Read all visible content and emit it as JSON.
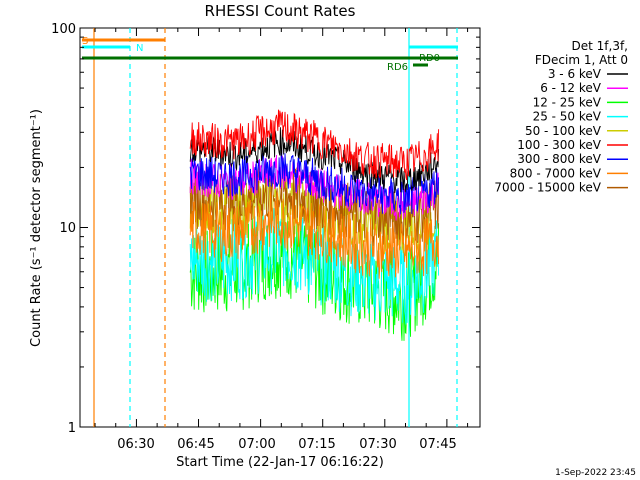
{
  "chart_data": {
    "type": "line",
    "title": "RHESSI Count Rates",
    "xlabel": "Start Time (22-Jan-17 06:16:22)",
    "ylabel": "Count Rate (s⁻¹ detector segment⁻¹)",
    "yscale": "log",
    "ylim": [
      1,
      100
    ],
    "xlim": [
      "06:16:22",
      "07:53:00"
    ],
    "x_ticks": [
      "06:30",
      "06:45",
      "07:00",
      "07:15",
      "07:30",
      "07:45"
    ],
    "y_ticks": [
      "1",
      "10",
      "100"
    ],
    "data_range": [
      "06:43:00",
      "07:43:00"
    ],
    "legend": {
      "placement": "right",
      "header": [
        "Det 1f,3f,",
        "FDecim 1, Att 0"
      ],
      "entries": [
        {
          "label": "3 - 6 keV",
          "color": "#000000"
        },
        {
          "label": "6 - 12 keV",
          "color": "#ff00ff"
        },
        {
          "label": "12 - 25 keV",
          "color": "#00ff00"
        },
        {
          "label": "25 - 50 keV",
          "color": "#00ffff"
        },
        {
          "label": "50 - 100 keV",
          "color": "#cccc00"
        },
        {
          "label": "100 - 300 keV",
          "color": "#ff0000"
        },
        {
          "label": "300 - 800 keV",
          "color": "#0000ff"
        },
        {
          "label": "800 - 7000 keV",
          "color": "#ff7f00"
        },
        {
          "label": "7000 - 15000 keV",
          "color": "#b05a00"
        }
      ]
    },
    "series": [
      {
        "name": "3 - 6 keV",
        "color": "#000000",
        "t": [
          "06:43",
          "06:50",
          "06:55",
          "07:00",
          "07:05",
          "07:15",
          "07:25",
          "07:35",
          "07:40",
          "07:43"
        ],
        "values": [
          25,
          24,
          23,
          25,
          27,
          23,
          19,
          17,
          19,
          22
        ]
      },
      {
        "name": "6 - 12 keV",
        "color": "#ff00ff",
        "t": [
          "06:43",
          "06:50",
          "06:55",
          "07:00",
          "07:05",
          "07:15",
          "07:25",
          "07:35",
          "07:40",
          "07:43"
        ],
        "values": [
          18,
          17,
          17,
          18,
          19,
          16,
          14,
          13,
          14,
          16
        ]
      },
      {
        "name": "12 - 25 keV",
        "color": "#00ff00",
        "t": [
          "06:43",
          "06:50",
          "06:55",
          "07:00",
          "07:05",
          "07:15",
          "07:25",
          "07:35",
          "07:40",
          "07:43"
        ],
        "values": [
          6.0,
          6.0,
          6.2,
          7.0,
          7.5,
          6.0,
          5.0,
          4.5,
          5.5,
          7.0
        ]
      },
      {
        "name": "25 - 50 keV",
        "color": "#00ffff",
        "t": [
          "06:43",
          "06:50",
          "06:55",
          "07:00",
          "07:05",
          "07:15",
          "07:25",
          "07:35",
          "07:40",
          "07:43"
        ],
        "values": [
          7.0,
          6.8,
          7.0,
          7.5,
          8.0,
          6.5,
          5.5,
          5.2,
          6.0,
          7.5
        ]
      },
      {
        "name": "50 - 100 keV",
        "color": "#cccc00",
        "t": [
          "06:43",
          "06:50",
          "06:55",
          "07:00",
          "07:05",
          "07:15",
          "07:25",
          "07:35",
          "07:40",
          "07:43"
        ],
        "values": [
          13,
          12.5,
          12.5,
          13.5,
          14,
          12,
          10.5,
          10,
          11,
          12
        ]
      },
      {
        "name": "100 - 300 keV",
        "color": "#ff0000",
        "t": [
          "06:43",
          "06:50",
          "06:55",
          "07:00",
          "07:05",
          "07:15",
          "07:25",
          "07:35",
          "07:40",
          "07:43"
        ],
        "values": [
          28,
          27,
          27,
          30,
          32,
          27,
          22,
          21,
          23,
          26
        ]
      },
      {
        "name": "300 - 800 keV",
        "color": "#0000ff",
        "t": [
          "06:43",
          "06:50",
          "06:55",
          "07:00",
          "07:05",
          "07:15",
          "07:25",
          "07:35",
          "07:40",
          "07:43"
        ],
        "values": [
          19,
          18,
          18,
          19,
          20,
          17,
          15,
          14,
          15,
          17
        ]
      },
      {
        "name": "800 - 7000 keV",
        "color": "#ff7f00",
        "t": [
          "06:43",
          "06:50",
          "06:55",
          "07:00",
          "07:05",
          "07:15",
          "07:25",
          "07:35",
          "07:40",
          "07:43"
        ],
        "values": [
          10,
          9.5,
          9.5,
          10.5,
          11,
          9.5,
          8,
          7.5,
          8,
          9
        ]
      },
      {
        "name": "7000 - 15000 keV",
        "color": "#b05a00",
        "t": [
          "06:43",
          "06:50",
          "06:55",
          "07:00",
          "07:05",
          "07:15",
          "07:25",
          "07:35",
          "07:40",
          "07:43"
        ],
        "values": [
          14,
          13.5,
          13.5,
          14.5,
          15,
          13,
          11.5,
          11,
          12,
          13
        ]
      }
    ],
    "annotations": [
      {
        "label": "S",
        "color": "#ff7f00"
      },
      {
        "label": "N",
        "color": "#00ffff"
      },
      {
        "label": "RD0",
        "color": "#007000"
      },
      {
        "label": "RD6",
        "color": "#007000"
      }
    ],
    "footer": "1-Sep-2022 23:45"
  },
  "colors": {
    "axis": "#000000",
    "eclipse_line": "#00ffff",
    "saa_line": "#ff7f00",
    "attenuator_bar": "#007000"
  }
}
